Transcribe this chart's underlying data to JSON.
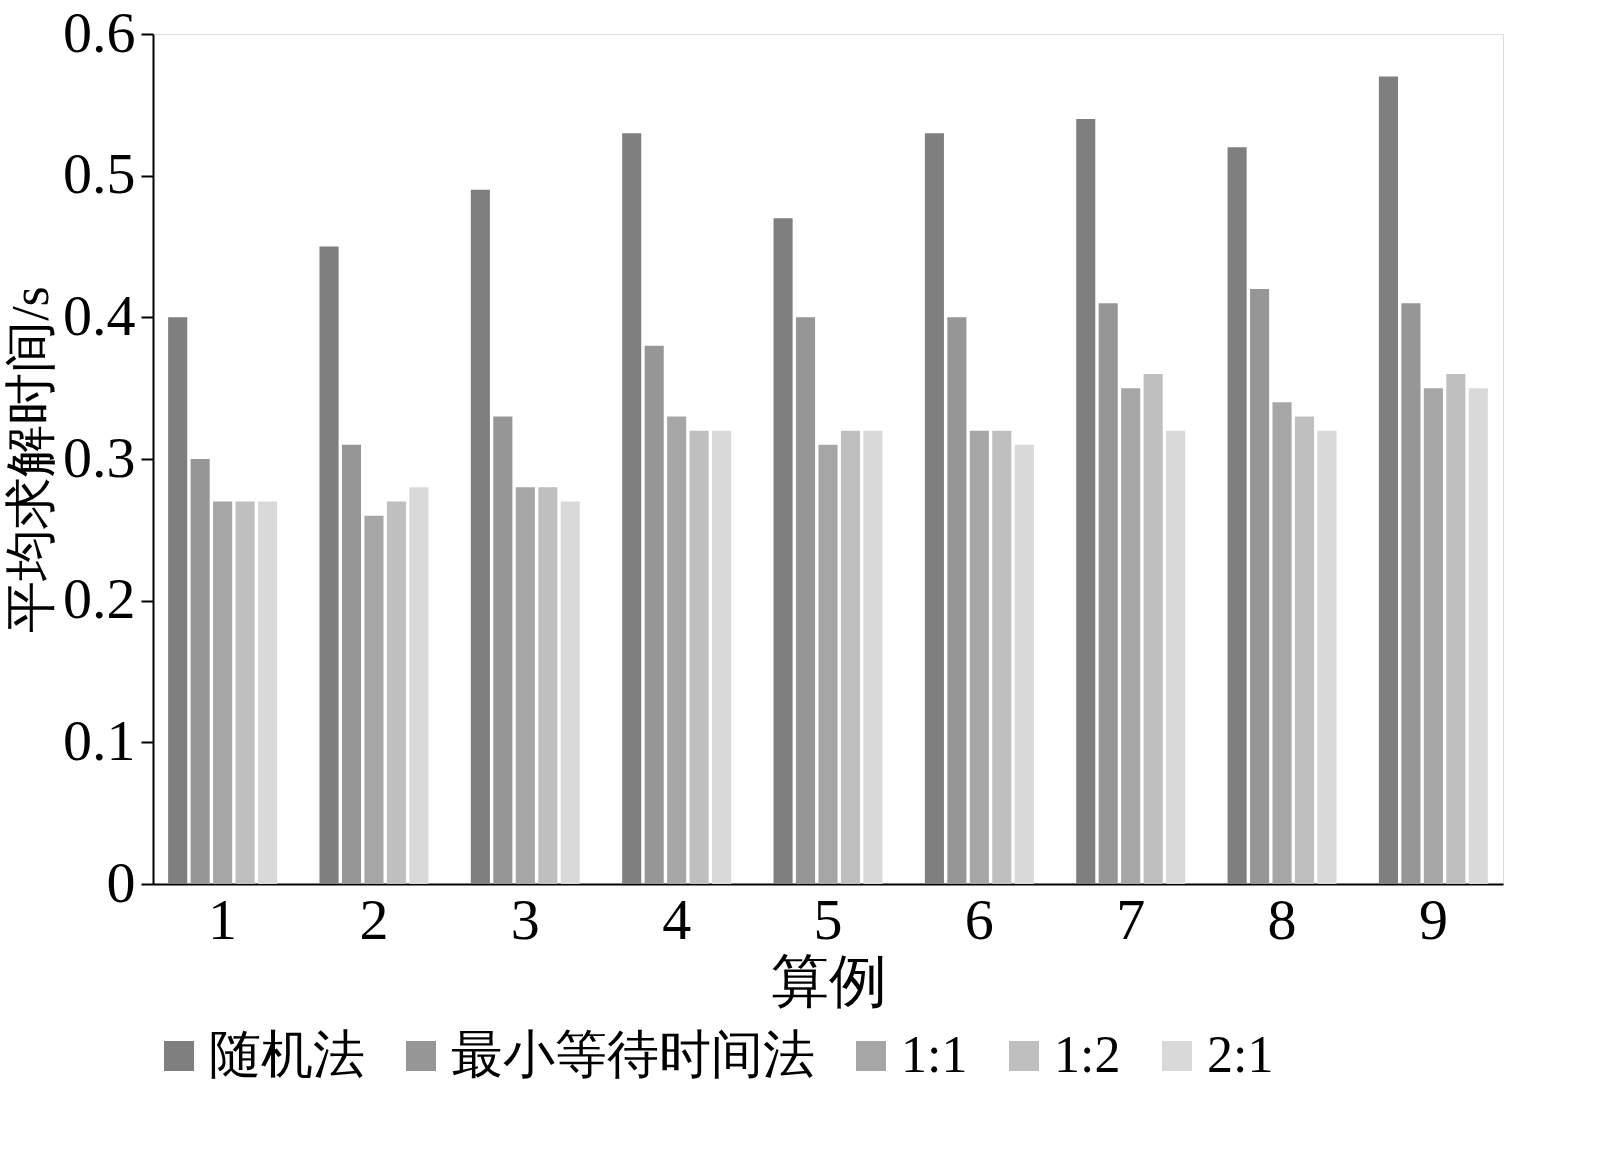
{
  "chart_data": {
    "type": "bar",
    "xlabel": "算例",
    "ylabel": "平均求解时间/s",
    "categories": [
      "1",
      "2",
      "3",
      "4",
      "5",
      "6",
      "7",
      "8",
      "9"
    ],
    "series": [
      {
        "name": "随机法",
        "color": "#7f7f7f",
        "values": [
          0.4,
          0.45,
          0.49,
          0.53,
          0.47,
          0.53,
          0.54,
          0.52,
          0.57
        ]
      },
      {
        "name": "最小等待时间法",
        "color": "#969696",
        "values": [
          0.3,
          0.31,
          0.33,
          0.38,
          0.4,
          0.4,
          0.41,
          0.42,
          0.41
        ]
      },
      {
        "name": "1:1",
        "color": "#a6a6a6",
        "values": [
          0.27,
          0.26,
          0.28,
          0.33,
          0.31,
          0.32,
          0.35,
          0.34,
          0.35
        ]
      },
      {
        "name": "1:2",
        "color": "#bfbfbf",
        "values": [
          0.27,
          0.27,
          0.28,
          0.32,
          0.32,
          0.32,
          0.36,
          0.33,
          0.36
        ]
      },
      {
        "name": "2:1",
        "color": "#d9d9d9",
        "values": [
          0.27,
          0.28,
          0.27,
          0.32,
          0.32,
          0.31,
          0.32,
          0.32,
          0.35
        ]
      }
    ],
    "ylim": [
      0,
      0.6
    ],
    "yticks": [
      0,
      0.1,
      0.2,
      0.3,
      0.4,
      0.5,
      0.6
    ],
    "grid": false,
    "legend": "bottom"
  }
}
